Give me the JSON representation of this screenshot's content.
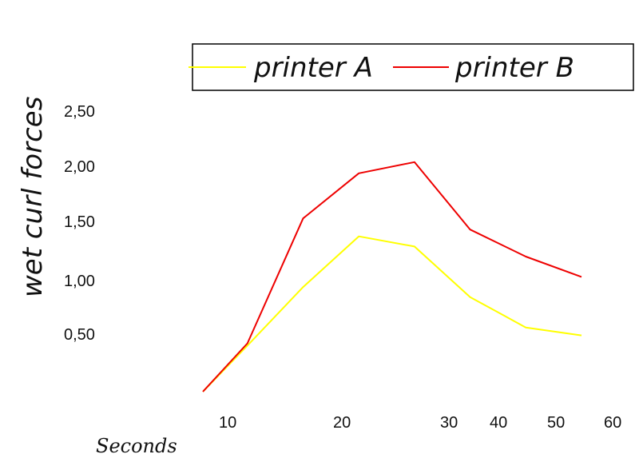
{
  "chart_data": {
    "type": "line",
    "title": "",
    "xlabel": "Seconds",
    "ylabel": "wet curl forces",
    "x_ticks": [
      "10",
      "20",
      "30",
      "40",
      "50",
      "60"
    ],
    "y_ticks": [
      "0,50",
      "1,00",
      "1,50",
      "2,00",
      "2,50"
    ],
    "ylim": [
      0,
      2.5
    ],
    "legend_position": "top",
    "grid": false,
    "x": [
      6,
      10,
      15,
      20,
      25,
      30,
      35,
      40
    ],
    "series": [
      {
        "name": "printer A",
        "color": "#ffff00",
        "values": [
          0.0,
          0.41,
          0.93,
          1.38,
          1.29,
          0.84,
          0.57,
          0.5
        ]
      },
      {
        "name": "printer B",
        "color": "#ee0000",
        "values": [
          0.0,
          0.43,
          1.54,
          1.94,
          2.04,
          1.44,
          1.2,
          1.02
        ]
      }
    ]
  }
}
